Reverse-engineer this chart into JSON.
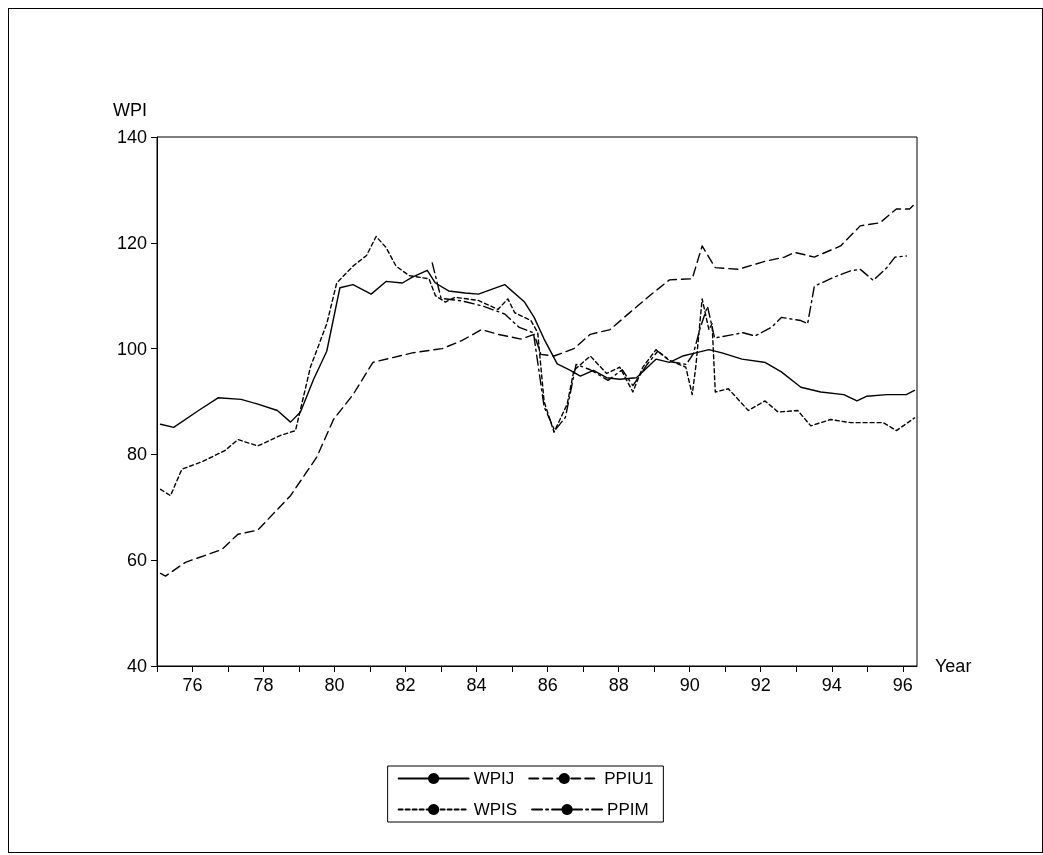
{
  "chart_data": {
    "type": "line",
    "xlabel": "Year",
    "ylabel": "WPI",
    "xlim": [
      75,
      96.4
    ],
    "ylim": [
      40,
      140
    ],
    "xticks": [
      {
        "value": 75,
        "label": null
      },
      76,
      {
        "value": 77,
        "label": null
      },
      78,
      {
        "value": 79,
        "label": null
      },
      80,
      {
        "value": 81,
        "label": null
      },
      82,
      {
        "value": 83,
        "label": null
      },
      84,
      {
        "value": 85,
        "label": null
      },
      86,
      {
        "value": 87,
        "label": null
      },
      88,
      {
        "value": 89,
        "label": null
      },
      90,
      {
        "value": 91,
        "label": null
      },
      92,
      {
        "value": 93,
        "label": null
      },
      94,
      {
        "value": 95,
        "label": null
      },
      96
    ],
    "yticks": [
      40,
      60,
      80,
      100,
      120,
      140
    ],
    "grid": false,
    "legend": "bottom",
    "marker": "none",
    "series": [
      {
        "name": "WPIJ",
        "color": "#000000",
        "line_style": "solid",
        "x": [
          75.1,
          75.47,
          76.17,
          76.72,
          77.37,
          77.84,
          78.39,
          78.76,
          79.04,
          79.41,
          79.78,
          80.15,
          80.52,
          81.03,
          81.45,
          81.91,
          82.19,
          82.61,
          82.84,
          83.21,
          83.68,
          84.05,
          84.42,
          84.79,
          85.35,
          85.62,
          85.9,
          86.27,
          86.64,
          86.92,
          87.29,
          87.66,
          88.03,
          88.5,
          89.05,
          89.43,
          89.8,
          90.17,
          90.54,
          90.91,
          91.47,
          92.12,
          92.58,
          93.13,
          93.69,
          94.34,
          94.71,
          94.99,
          95.55,
          96.1,
          96.33
        ],
        "values": [
          85.7,
          85.1,
          88.3,
          90.7,
          90.4,
          89.5,
          88.3,
          86.1,
          88.0,
          94.2,
          99.5,
          111.5,
          112.1,
          110.3,
          112.7,
          112.4,
          113.5,
          114.8,
          112.4,
          110.9,
          110.5,
          110.3,
          111.2,
          112.1,
          108.8,
          105.9,
          101.8,
          97.1,
          95.9,
          94.8,
          95.9,
          94.5,
          94.2,
          94.5,
          98.0,
          97.4,
          98.6,
          99.2,
          99.8,
          99.2,
          98.0,
          97.4,
          95.6,
          92.7,
          91.8,
          91.3,
          90.1,
          91.0,
          91.3,
          91.3,
          92.1
        ]
      },
      {
        "name": "PPIU1",
        "color": "#000000",
        "line_style": "dashed",
        "x": [
          75.1,
          75.24,
          75.8,
          76.82,
          77.28,
          77.84,
          78.76,
          79.5,
          79.97,
          80.52,
          81.08,
          81.64,
          82.19,
          83.03,
          83.58,
          84.14,
          84.6,
          85.25,
          85.62,
          85.81,
          86.18,
          86.74,
          87.2,
          87.76,
          88.31,
          88.87,
          89.43,
          90.07,
          90.35,
          90.72,
          91.37,
          92.12,
          92.67,
          92.95,
          93.51,
          94.25,
          94.8,
          95.36,
          95.82,
          96.19,
          96.38
        ],
        "values": [
          57.5,
          57.0,
          59.6,
          62.0,
          64.9,
          65.7,
          72.2,
          79.5,
          86.6,
          91.3,
          97.4,
          98.3,
          99.2,
          100.0,
          101.5,
          103.6,
          102.7,
          101.8,
          102.7,
          98.9,
          98.6,
          100.0,
          102.7,
          103.6,
          106.8,
          110.0,
          113.0,
          113.2,
          119.4,
          115.3,
          115.0,
          116.5,
          117.3,
          118.2,
          117.3,
          119.4,
          123.2,
          123.8,
          126.4,
          126.4,
          127.6
        ]
      },
      {
        "name": "WPIS",
        "color": "#000000",
        "line_style": "dotted",
        "x": [
          75.1,
          75.38,
          75.7,
          76.26,
          76.91,
          77.28,
          77.84,
          78.48,
          78.9,
          79.32,
          79.78,
          80.06,
          80.52,
          80.9,
          81.17,
          81.45,
          81.73,
          82.1,
          82.66,
          82.84,
          83.12,
          83.4,
          84.05,
          84.6,
          84.88,
          85.07,
          85.53,
          85.72,
          85.9,
          86.18,
          86.55,
          86.74,
          87.2,
          87.66,
          88.03,
          88.4,
          88.68,
          89.05,
          89.43,
          89.89,
          90.07,
          90.17,
          90.35,
          90.54,
          90.63,
          90.72,
          91.09,
          91.65,
          92.12,
          92.49,
          93.04,
          93.41,
          93.97,
          94.53,
          94.99,
          95.45,
          95.82,
          96.33
        ],
        "values": [
          73.4,
          72.2,
          77.2,
          78.6,
          80.7,
          82.8,
          81.6,
          83.6,
          84.5,
          96.5,
          104.7,
          112.4,
          115.6,
          117.6,
          121.2,
          119.1,
          115.6,
          113.8,
          113.2,
          110.0,
          108.8,
          109.7,
          109.1,
          107.4,
          109.4,
          106.8,
          105.3,
          103.0,
          90.0,
          84.2,
          89.5,
          95.9,
          98.6,
          95.3,
          96.5,
          91.8,
          96.5,
          99.8,
          97.7,
          96.5,
          91.3,
          96.5,
          109.4,
          103.6,
          104.7,
          91.8,
          92.4,
          88.3,
          90.1,
          88.0,
          88.3,
          85.4,
          86.6,
          86.0,
          86.0,
          86.0,
          84.5,
          86.9
        ]
      },
      {
        "name": "PPIM",
        "color": "#000000",
        "line_style": "dashdot",
        "x": [
          82.75,
          83.0,
          83.6,
          84.2,
          84.8,
          85.2,
          85.6,
          85.9,
          86.2,
          86.5,
          86.8,
          87.2,
          87.7,
          88.1,
          88.4,
          88.8,
          89.1,
          89.5,
          89.9,
          90.1,
          90.3,
          90.5,
          90.7,
          91.1,
          91.5,
          91.84,
          92.3,
          92.58,
          93.13,
          93.32,
          93.51,
          94.06,
          94.53,
          94.8,
          95.17,
          95.55,
          95.78,
          96.1
        ],
        "values": [
          116.2,
          109.5,
          109.0,
          108.0,
          106.5,
          104.0,
          103.0,
          89.0,
          84.5,
          87.0,
          97.0,
          96.0,
          94.0,
          96.0,
          93.0,
          97.0,
          99.5,
          97.5,
          97.0,
          99.0,
          104.0,
          108.0,
          102.0,
          102.5,
          103.0,
          102.4,
          104.0,
          105.9,
          105.3,
          104.7,
          111.8,
          113.5,
          114.7,
          115.0,
          112.9,
          115.3,
          117.3,
          117.5
        ]
      }
    ]
  }
}
